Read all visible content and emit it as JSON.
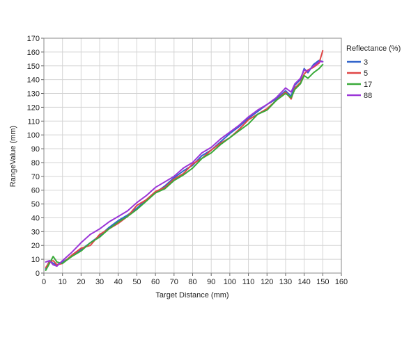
{
  "chart_data": {
    "type": "line",
    "title": "",
    "xlabel": "Target Distance (mm)",
    "ylabel": "RangeValue (mm)",
    "xlim": [
      0,
      160
    ],
    "ylim": [
      0,
      170
    ],
    "xticks": [
      "0",
      "10",
      "20",
      "30",
      "40",
      "50",
      "60",
      "70",
      "80",
      "90",
      "100",
      "110",
      "120",
      "130",
      "140",
      "150",
      "160"
    ],
    "yticks": [
      "0",
      "10",
      "20",
      "30",
      "40",
      "50",
      "60",
      "70",
      "80",
      "90",
      "100",
      "110",
      "120",
      "130",
      "140",
      "150",
      "160",
      "170"
    ],
    "grid": true,
    "legend_position": "right",
    "legend_title": "Reflectance (%)",
    "series": [
      {
        "name": "3",
        "color": "#3366cc",
        "x": [
          1,
          3,
          5,
          7,
          10,
          15,
          20,
          25,
          30,
          35,
          40,
          45,
          50,
          55,
          60,
          65,
          70,
          75,
          80,
          85,
          90,
          95,
          100,
          105,
          110,
          115,
          120,
          125,
          130,
          133,
          135,
          138,
          140,
          142,
          145,
          148,
          150
        ],
        "y": [
          3,
          9,
          7,
          6,
          8,
          12,
          17,
          22,
          27,
          33,
          38,
          42,
          47,
          53,
          58,
          63,
          69,
          74,
          78,
          85,
          89,
          95,
          101,
          106,
          112,
          117,
          122,
          126,
          132,
          128,
          136,
          140,
          148,
          145,
          151,
          154,
          153
        ]
      },
      {
        "name": "5",
        "color": "#e04646",
        "x": [
          1,
          3,
          5,
          7,
          10,
          15,
          20,
          25,
          30,
          35,
          40,
          45,
          50,
          55,
          60,
          65,
          70,
          75,
          80,
          85,
          90,
          95,
          100,
          105,
          110,
          115,
          120,
          125,
          130,
          133,
          135,
          138,
          140,
          142,
          145,
          148,
          150
        ],
        "y": [
          4,
          8,
          9,
          6,
          7,
          13,
          18,
          20,
          28,
          32,
          36,
          41,
          49,
          53,
          59,
          62,
          68,
          72,
          79,
          83,
          89,
          94,
          98,
          104,
          111,
          115,
          119,
          125,
          131,
          126,
          134,
          138,
          144,
          147,
          149,
          152,
          161
        ]
      },
      {
        "name": "17",
        "color": "#3aaa3a",
        "x": [
          1,
          3,
          5,
          7,
          10,
          15,
          20,
          25,
          30,
          35,
          40,
          45,
          50,
          55,
          60,
          65,
          70,
          75,
          80,
          85,
          90,
          95,
          100,
          105,
          110,
          115,
          120,
          125,
          130,
          133,
          135,
          138,
          140,
          142,
          145,
          148,
          150
        ],
        "y": [
          2,
          7,
          12,
          8,
          7,
          12,
          16,
          22,
          26,
          32,
          37,
          41,
          46,
          52,
          58,
          61,
          67,
          71,
          76,
          83,
          87,
          93,
          98,
          103,
          108,
          115,
          118,
          125,
          130,
          127,
          133,
          137,
          143,
          141,
          145,
          148,
          151
        ]
      },
      {
        "name": "88",
        "color": "#9b35d8",
        "x": [
          1,
          3,
          5,
          7,
          10,
          15,
          20,
          25,
          30,
          35,
          40,
          45,
          50,
          55,
          60,
          65,
          70,
          75,
          80,
          85,
          90,
          95,
          100,
          105,
          110,
          115,
          120,
          125,
          130,
          133,
          135,
          138,
          140,
          142,
          145,
          148,
          150
        ],
        "y": [
          8,
          9,
          6,
          5,
          9,
          15,
          22,
          28,
          32,
          37,
          41,
          45,
          51,
          56,
          62,
          66,
          70,
          76,
          80,
          87,
          91,
          97,
          102,
          107,
          113,
          118,
          122,
          127,
          134,
          131,
          137,
          141,
          147,
          146,
          150,
          153,
          153
        ]
      }
    ]
  }
}
